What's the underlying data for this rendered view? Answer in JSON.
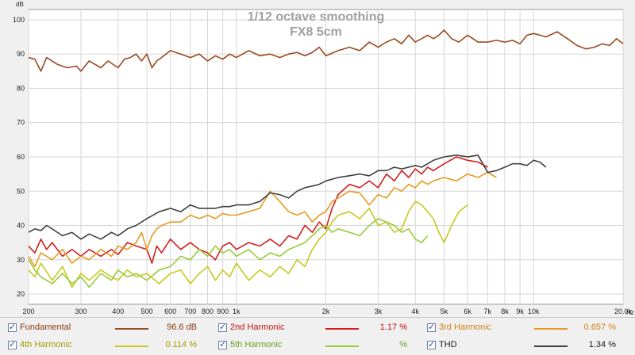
{
  "chart_data": {
    "type": "line",
    "title": "1/12 octave smoothing",
    "subtitle": "FX8 5cm",
    "x_unit": "Hz",
    "y_unit": "dB",
    "x_scale": "log",
    "xlim": [
      200,
      20000
    ],
    "ylim": [
      17,
      103
    ],
    "x_ticks": [
      200,
      300,
      400,
      500,
      600,
      700,
      800,
      900,
      1000,
      2000,
      3000,
      4000,
      5000,
      6000,
      7000,
      8000,
      9000,
      10000,
      20000
    ],
    "x_tick_labels": [
      "200",
      "300",
      "400",
      "500",
      "600",
      "700",
      "800",
      "900",
      "1k",
      "2k",
      "3k",
      "4k",
      "5k",
      "6k",
      "7k",
      "8k",
      "9k",
      "10k",
      "20.0k"
    ],
    "y_ticks": [
      20,
      30,
      40,
      50,
      60,
      70,
      80,
      90,
      100
    ],
    "y_tick_labels": [
      "20",
      "30",
      "40",
      "50",
      "60",
      "70",
      "80",
      "90",
      "100"
    ],
    "grid": true,
    "legend_position": "bottom",
    "series": [
      {
        "name": "Fundamental",
        "value": "96.6 dB",
        "color": "#9a4a20",
        "text_color": "#8a3a10",
        "x": [
          200,
          210,
          220,
          230,
          250,
          270,
          290,
          300,
          320,
          350,
          370,
          400,
          420,
          440,
          460,
          480,
          500,
          520,
          540,
          560,
          600,
          650,
          700,
          750,
          800,
          850,
          900,
          950,
          1000,
          1050,
          1100,
          1200,
          1300,
          1400,
          1500,
          1600,
          1700,
          1800,
          1900,
          2000,
          2200,
          2400,
          2600,
          2800,
          3000,
          3200,
          3400,
          3600,
          3800,
          4000,
          4200,
          4400,
          4600,
          4800,
          5000,
          5300,
          5600,
          6000,
          6500,
          7000,
          7500,
          8000,
          8500,
          9000,
          9500,
          10000,
          10500,
          11000,
          12000,
          13000,
          14000,
          15000,
          16000,
          17000,
          18000,
          19000,
          20000
        ],
        "y": [
          89,
          88.5,
          85,
          89,
          87,
          86,
          86.5,
          85,
          88,
          86,
          88,
          86,
          88.5,
          89,
          90,
          88,
          90,
          86,
          88,
          89,
          91,
          90,
          89,
          90,
          88,
          89.5,
          88.5,
          90,
          89,
          90,
          91,
          89.5,
          90,
          89,
          90,
          90.5,
          89.5,
          90.5,
          92,
          89.5,
          91,
          92,
          91,
          93.5,
          92,
          93.5,
          94.5,
          93,
          95.5,
          93.5,
          94.5,
          95.5,
          94.5,
          95.5,
          97,
          94.5,
          93.5,
          95.5,
          93.5,
          93.5,
          94,
          93.5,
          94,
          93,
          95.5,
          96,
          95.5,
          95,
          96.5,
          94.5,
          92.5,
          91.5,
          92,
          93,
          92.5,
          94.5,
          93
        ]
      },
      {
        "name": "2nd Harmonic",
        "value": "1.17 %",
        "color": "#d21f1f",
        "text_color": "#c01010",
        "x": [
          200,
          210,
          220,
          230,
          240,
          260,
          280,
          300,
          320,
          350,
          380,
          400,
          430,
          460,
          500,
          520,
          540,
          560,
          600,
          650,
          700,
          750,
          800,
          850,
          900,
          950,
          1000,
          1100,
          1200,
          1300,
          1400,
          1500,
          1600,
          1700,
          1800,
          1900,
          2000,
          2100,
          2200,
          2400,
          2600,
          2800,
          3000,
          3200,
          3400,
          3600,
          3800,
          4000,
          4200,
          4400,
          4600,
          5000,
          5500,
          6000,
          6500,
          7000
        ],
        "y": [
          34,
          32,
          36,
          33,
          35,
          31,
          33,
          31,
          33,
          31,
          33,
          31.5,
          35,
          34,
          33,
          29,
          34,
          32,
          36,
          33,
          35,
          33,
          32,
          30,
          34,
          35,
          33,
          35,
          34,
          36,
          34,
          37,
          36,
          40,
          38,
          41,
          39,
          45,
          49,
          52,
          51,
          53,
          51,
          55,
          53,
          56,
          54,
          56.5,
          55,
          57,
          56,
          58,
          60,
          59,
          58.5,
          57
        ]
      },
      {
        "name": "3rd Harmonic",
        "value": "0.657 %",
        "color": "#e89a20",
        "text_color": "#d08010",
        "x": [
          200,
          210,
          220,
          240,
          260,
          280,
          300,
          320,
          350,
          380,
          400,
          430,
          460,
          480,
          500,
          520,
          540,
          560,
          600,
          650,
          700,
          750,
          800,
          850,
          900,
          950,
          1000,
          1100,
          1200,
          1300,
          1400,
          1500,
          1600,
          1700,
          1800,
          1900,
          2000,
          2100,
          2200,
          2400,
          2600,
          2800,
          3000,
          3200,
          3400,
          3600,
          3800,
          4000,
          4200,
          4400,
          4600,
          5000,
          5500,
          6000,
          6500,
          7000,
          7500
        ],
        "y": [
          31,
          28,
          32,
          30,
          33,
          29,
          31,
          30,
          33,
          31,
          34,
          33,
          35,
          38,
          33,
          37,
          39,
          40,
          41,
          41,
          43,
          42,
          43,
          42,
          43.5,
          43,
          43,
          44,
          45,
          50,
          47,
          44,
          43,
          44,
          41,
          43,
          44,
          47,
          48,
          50,
          49.5,
          46,
          49,
          48,
          51,
          50,
          52,
          51,
          53,
          52,
          53,
          54,
          53,
          55,
          54,
          55.5,
          54
        ]
      },
      {
        "name": "4th Harmonic",
        "value": "0.114 %",
        "color": "#c8c820",
        "text_color": "#a0a000",
        "x": [
          200,
          210,
          220,
          240,
          260,
          280,
          300,
          320,
          350,
          380,
          400,
          430,
          460,
          500,
          550,
          600,
          650,
          700,
          750,
          800,
          850,
          900,
          950,
          1000,
          1100,
          1200,
          1300,
          1400,
          1500,
          1600,
          1700,
          1800,
          1900,
          2000,
          2100,
          2200,
          2400,
          2600,
          2800,
          3000,
          3200,
          3400,
          3600,
          3800,
          4000,
          4200,
          4400,
          4600,
          4800,
          5000,
          5300,
          5600,
          6000
        ],
        "y": [
          27,
          25,
          29,
          24,
          28,
          22,
          26,
          24,
          27,
          25,
          24,
          27,
          25,
          26,
          23,
          26,
          27,
          23,
          26,
          28,
          24,
          27,
          25,
          29,
          24,
          27,
          25,
          28,
          26,
          30,
          28,
          33,
          36,
          38,
          41,
          43,
          44,
          42,
          45,
          40,
          41,
          38,
          39,
          44,
          47,
          46,
          44,
          42,
          38,
          35,
          40,
          44,
          46
        ]
      },
      {
        "name": "5th Harmonic",
        "value": "%",
        "color": "#98cc38",
        "text_color": "#70a020",
        "x": [
          200,
          210,
          220,
          240,
          260,
          280,
          300,
          320,
          350,
          380,
          400,
          430,
          460,
          500,
          550,
          600,
          650,
          700,
          750,
          800,
          850,
          900,
          950,
          1000,
          1100,
          1200,
          1300,
          1400,
          1500,
          1600,
          1700,
          1800,
          1900,
          2000,
          2100,
          2200,
          2400,
          2600,
          2800,
          3000,
          3200,
          3400,
          3600,
          3800,
          4000,
          4200,
          4400
        ],
        "y": [
          30,
          27,
          25,
          23,
          26,
          23,
          25,
          22,
          26,
          24,
          27,
          25,
          26,
          24,
          27,
          28,
          31,
          30,
          33,
          31,
          34,
          32,
          33,
          31,
          33,
          30,
          32,
          31,
          33,
          34,
          35,
          37,
          39,
          40,
          38,
          39,
          38,
          37,
          40,
          42,
          41,
          40,
          38,
          39,
          36,
          35,
          37
        ]
      },
      {
        "name": "THD",
        "value": "1.34 %",
        "color": "#404040",
        "text_color": "#202020",
        "x": [
          200,
          210,
          220,
          230,
          240,
          260,
          280,
          300,
          320,
          350,
          380,
          400,
          430,
          460,
          500,
          550,
          600,
          650,
          700,
          750,
          800,
          850,
          900,
          950,
          1000,
          1100,
          1200,
          1300,
          1400,
          1500,
          1600,
          1700,
          1800,
          1900,
          2000,
          2200,
          2400,
          2600,
          2800,
          3000,
          3200,
          3400,
          3600,
          3800,
          4000,
          4200,
          4400,
          4600,
          5000,
          5500,
          6000,
          6500,
          7000,
          7500,
          8000,
          8500,
          9000,
          9500,
          10000,
          10500,
          11000
        ],
        "y": [
          38,
          39,
          38.5,
          40,
          39,
          37,
          38,
          36,
          37.5,
          36,
          38,
          37,
          39,
          40,
          42,
          44,
          45,
          44,
          46,
          45,
          45,
          45,
          45.5,
          45.5,
          46,
          46,
          47,
          49.5,
          49,
          48,
          50,
          51,
          51.5,
          52,
          53,
          54,
          54.5,
          55,
          54.5,
          56,
          56,
          57,
          56.5,
          57,
          57.5,
          57,
          58,
          59,
          60,
          60.5,
          60,
          60.5,
          55.5,
          56,
          57,
          58,
          58,
          57.5,
          59,
          58.5,
          57
        ]
      }
    ]
  }
}
